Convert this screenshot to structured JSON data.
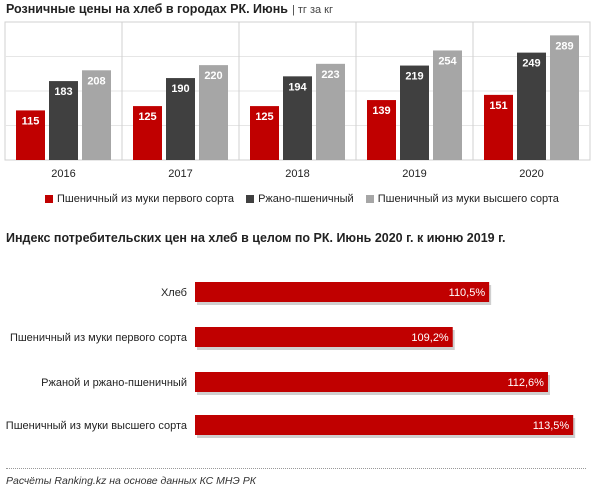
{
  "chart1": {
    "title": "Розничные цены на хлеб в городах РК. Июнь",
    "unit": "| тг за кг"
  },
  "chart2": {
    "title": "Индекс потребительских цен на хлеб в целом по РК. Июнь 2020 г. к июню 2019 г."
  },
  "footer": "Расчёты Ranking.kz на основе данных КС МНЭ РК",
  "colors": {
    "red": "#c00000",
    "dark": "#404040",
    "gray": "#a6a6a6"
  },
  "chart_data": [
    {
      "type": "bar",
      "title": "Розничные цены на хлеб в городах РК. Июнь",
      "categories": [
        "2016",
        "2017",
        "2018",
        "2019",
        "2020"
      ],
      "series": [
        {
          "name": "Пшеничный из муки первого сорта",
          "values": [
            115,
            125,
            125,
            139,
            151
          ],
          "color": "#c00000"
        },
        {
          "name": "Ржано-пшеничный",
          "values": [
            183,
            190,
            194,
            219,
            249
          ],
          "color": "#404040"
        },
        {
          "name": "Пшеничный из муки высшего сорта",
          "values": [
            208,
            220,
            223,
            254,
            289
          ],
          "color": "#a6a6a6"
        }
      ],
      "ylim": [
        0,
        320
      ],
      "legend": "bottom"
    },
    {
      "type": "bar",
      "orientation": "horizontal",
      "title": "Индекс потребительских цен на хлеб в целом по РК. Июнь 2020 г. к июню 2019 г.",
      "categories": [
        "Хлеб",
        "Пшеничный из муки первого сорта",
        "Ржаной и ржано-пшеничный",
        "Пшеничный из муки высшего сорта"
      ],
      "values": [
        110.5,
        109.2,
        112.6,
        113.5
      ],
      "labels": [
        "110,5%",
        "109,2%",
        "112,6%",
        "113,5%"
      ],
      "xlim": [
        100,
        114.1
      ],
      "color": "#c00000"
    }
  ]
}
